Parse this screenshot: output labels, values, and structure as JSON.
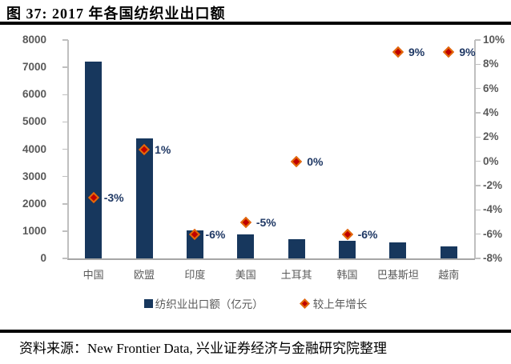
{
  "figure": {
    "title": "图 37: 2017 年各国纺织业出口额",
    "source": "资料来源：New Frontier Data, 兴业证券经济与金融研究院整理"
  },
  "legend": [
    {
      "label": "纺织业出口额（亿元）",
      "marker": "square"
    },
    {
      "label": "较上年增长",
      "marker": "diamond"
    }
  ],
  "colors": {
    "bar": "#17375D",
    "diamond_fill": "#C00000",
    "diamond_edge": "#E26B0A",
    "data_label": "#1F3864",
    "axis_text": "#595959",
    "axis_line": "#BFBFBF",
    "baseline": "#A6A6A6"
  },
  "chart_data": {
    "type": "bar",
    "subtype": "bar-and-scatter-combo",
    "title": "2017 年各国纺织业出口额",
    "categories": [
      "中国",
      "欧盟",
      "印度",
      "美国",
      "土耳其",
      "韩国",
      "巴基斯坦",
      "越南"
    ],
    "series": [
      {
        "name": "纺织业出口额（亿元）",
        "type": "bar",
        "axis": "left",
        "values": [
          7200,
          4400,
          1030,
          870,
          690,
          645,
          595,
          430
        ]
      },
      {
        "name": "较上年增长",
        "type": "scatter",
        "axis": "right",
        "values": [
          -3,
          1,
          -6,
          -5,
          0,
          -6,
          9,
          9
        ],
        "labels": [
          "-3%",
          "1%",
          "-6%",
          "-5%",
          "0%",
          "-6%",
          "9%",
          "9%"
        ]
      }
    ],
    "left_axis": {
      "min": 0,
      "max": 8000,
      "step": 1000,
      "ticks": [
        "8000",
        "7000",
        "6000",
        "5000",
        "4000",
        "3000",
        "2000",
        "1000",
        "0"
      ]
    },
    "right_axis": {
      "min": -8,
      "max": 10,
      "step": 2,
      "ticks": [
        "10%",
        "8%",
        "6%",
        "4%",
        "2%",
        "0%",
        "-2%",
        "-4%",
        "-6%",
        "-8%"
      ]
    },
    "grid": false,
    "legend_position": "bottom"
  }
}
